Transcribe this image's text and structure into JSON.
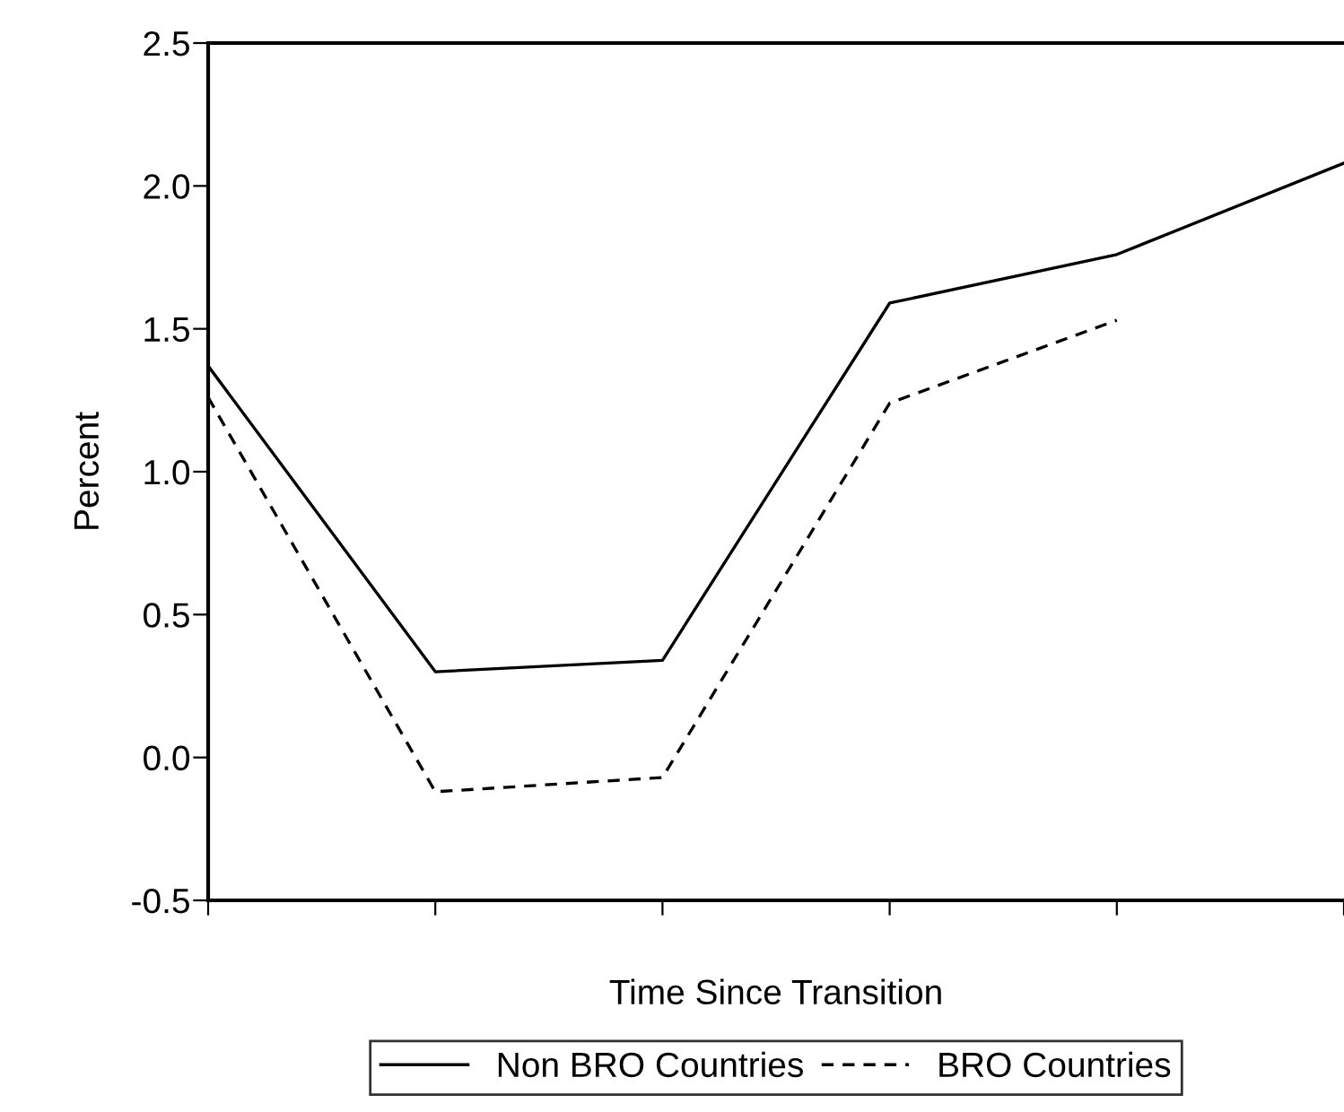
{
  "chart_data": {
    "type": "line",
    "xlabel": "Time Since Transition",
    "ylabel": "Percent",
    "categories": [
      null,
      null,
      null,
      null,
      null,
      null
    ],
    "ylim": [
      -0.5,
      2.5
    ],
    "yticks": [
      -0.5,
      {
        "value": 0,
        "label": "0.0"
      },
      0.5,
      {
        "value": 1,
        "label": "1.0"
      },
      1.5,
      {
        "value": 2,
        "label": "2.0"
      },
      2.5
    ],
    "series": [
      {
        "name": "Non BRO Countries",
        "color": "#000000",
        "line_style": "solid",
        "values": [
          1.37,
          0.3,
          0.34,
          1.59,
          1.76,
          2.08
        ]
      },
      {
        "name": "BRO Countries",
        "color": "#000000",
        "line_style": "dashed",
        "values": [
          1.26,
          -0.12,
          -0.07,
          1.24,
          1.53,
          null
        ]
      }
    ],
    "grid": false,
    "legend": "bottom",
    "marker": "none"
  }
}
